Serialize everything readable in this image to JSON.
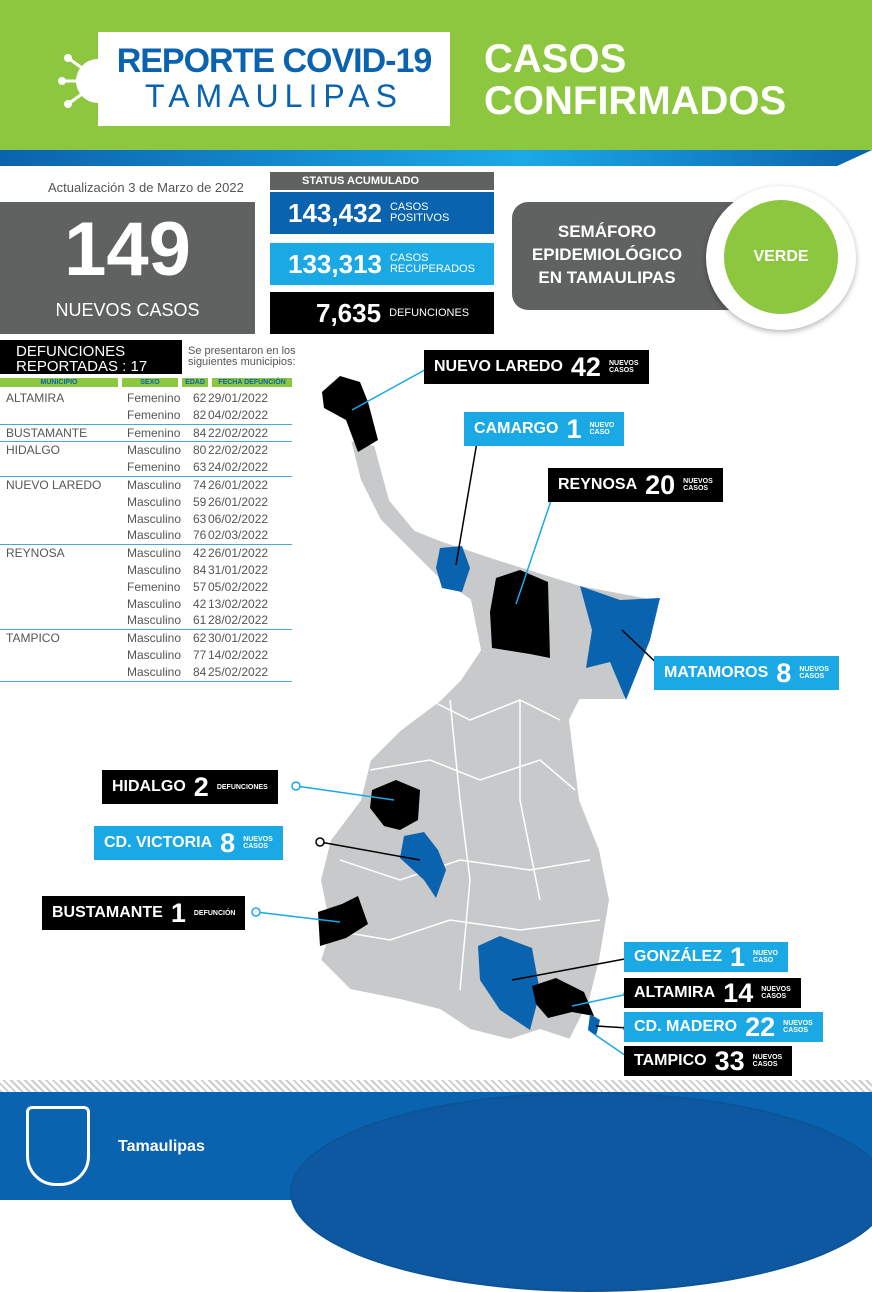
{
  "header": {
    "title_line1": "REPORTE COVID-19",
    "title_line2": "TAMAULIPAS",
    "section_line1": "CASOS",
    "section_line2": "CONFIRMADOS"
  },
  "update": "Actualización 3 de Marzo de 2022",
  "new_cases": {
    "value": "149",
    "label": "NUEVOS CASOS"
  },
  "status": {
    "title": "STATUS ACUMULADO",
    "items": [
      {
        "value": "143,432",
        "l1": "CASOS",
        "l2": "POSITIVOS",
        "color": "#0a63ae"
      },
      {
        "value": "133,313",
        "l1": "CASOS",
        "l2": "RECUPERADOS",
        "color": "#1ba9e6"
      },
      {
        "value": "7,635",
        "l1": "DEFUNCIONES",
        "l2": "",
        "color": "#000000"
      }
    ]
  },
  "semaforo": {
    "l1": "SEMÁFORO",
    "l2": "EPIDEMIOLÓGICO",
    "l3": "EN TAMAULIPAS",
    "status": "VERDE",
    "color": "#8dc63f"
  },
  "deaths": {
    "title1": "DEFUNCIONES",
    "title2": "REPORTADAS : 17",
    "note1": "Se presentaron en los",
    "note2": "siguientes municipios:",
    "columns": [
      "MUNICIPIO",
      "SEXO",
      "EDAD",
      "FECHA DEFUNCIÓN"
    ],
    "groups": [
      {
        "municipio": "ALTAMIRA",
        "rows": [
          [
            "Femenino",
            "62",
            "29/01/2022"
          ],
          [
            "Femenino",
            "82",
            "04/02/2022"
          ]
        ]
      },
      {
        "municipio": "BUSTAMANTE",
        "rows": [
          [
            "Femenino",
            "84",
            "22/02/2022"
          ]
        ]
      },
      {
        "municipio": "HIDALGO",
        "rows": [
          [
            "Masculino",
            "80",
            "22/02/2022"
          ],
          [
            "Femenino",
            "63",
            "24/02/2022"
          ]
        ]
      },
      {
        "municipio": "NUEVO LAREDO",
        "rows": [
          [
            "Masculino",
            "74",
            "26/01/2022"
          ],
          [
            "Masculino",
            "59",
            "26/01/2022"
          ],
          [
            "Masculino",
            "63",
            "06/02/2022"
          ],
          [
            "Masculino",
            "76",
            "02/03/2022"
          ]
        ]
      },
      {
        "municipio": "REYNOSA",
        "rows": [
          [
            "Masculino",
            "42",
            "26/01/2022"
          ],
          [
            "Masculino",
            "84",
            "31/01/2022"
          ],
          [
            "Femenino",
            "57",
            "05/02/2022"
          ],
          [
            "Masculino",
            "42",
            "13/02/2022"
          ],
          [
            "Masculino",
            "61",
            "28/02/2022"
          ]
        ]
      },
      {
        "municipio": "TAMPICO",
        "rows": [
          [
            "Masculino",
            "62",
            "30/01/2022"
          ],
          [
            "Masculino",
            "77",
            "14/02/2022"
          ],
          [
            "Masculino",
            "84",
            "25/02/2022"
          ]
        ]
      }
    ]
  },
  "map_labels": [
    {
      "name": "NUEVO LAREDO",
      "value": "42",
      "s1": "NUEVOS",
      "s2": "CASOS",
      "style": "blk"
    },
    {
      "name": "CAMARGO",
      "value": "1",
      "s1": "NUEVO",
      "s2": "CASO",
      "style": "lb"
    },
    {
      "name": "REYNOSA",
      "value": "20",
      "s1": "NUEVOS",
      "s2": "CASOS",
      "style": "blk"
    },
    {
      "name": "MATAMOROS",
      "value": "8",
      "s1": "NUEVOS",
      "s2": "CASOS",
      "style": "lb"
    },
    {
      "name": "HIDALGO",
      "value": "2",
      "s1": "DEFUNCIONES",
      "s2": "",
      "style": "blk"
    },
    {
      "name": "CD. VICTORIA",
      "value": "8",
      "s1": "NUEVOS",
      "s2": "CASOS",
      "style": "lb"
    },
    {
      "name": "BUSTAMANTE",
      "value": "1",
      "s1": "DEFUNCIÓN",
      "s2": "",
      "style": "blk"
    },
    {
      "name": "GONZÁLEZ",
      "value": "1",
      "s1": "NUEVO",
      "s2": "CASO",
      "style": "lb"
    },
    {
      "name": "ALTAMIRA",
      "value": "14",
      "s1": "NUEVOS",
      "s2": "CASOS",
      "style": "blk"
    },
    {
      "name": "CD. MADERO",
      "value": "22",
      "s1": "NUEVOS",
      "s2": "CASOS",
      "style": "lb"
    },
    {
      "name": "TAMPICO",
      "value": "33",
      "s1": "NUEVOS",
      "s2": "CASOS",
      "style": "blk"
    }
  ],
  "footer": {
    "brand": "Tamaulipas"
  },
  "colors": {
    "green": "#8dc63f",
    "blue": "#0a63ae",
    "light_blue": "#1ba9e6",
    "gray": "#606161"
  }
}
